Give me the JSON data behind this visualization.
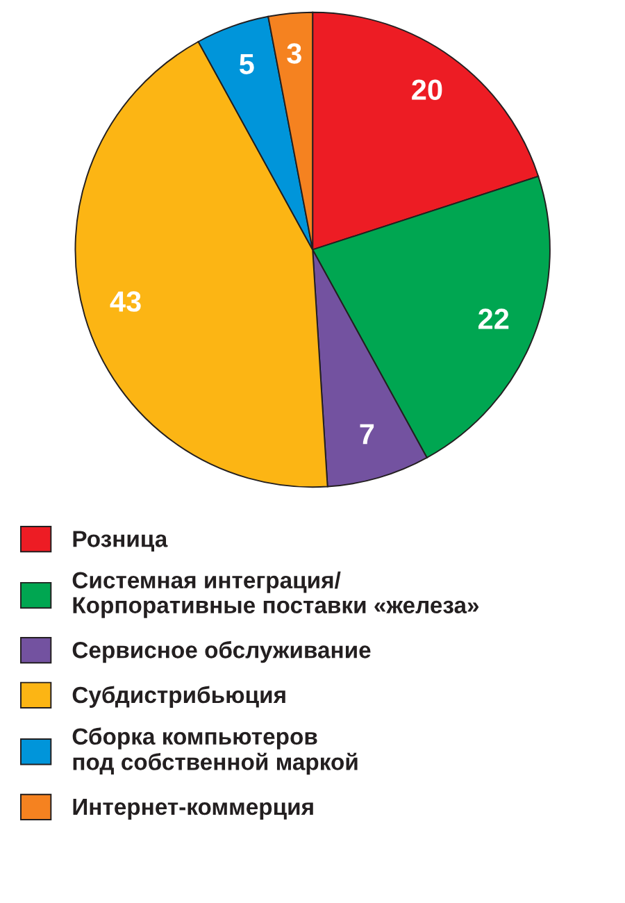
{
  "chart_data": {
    "type": "pie",
    "categories": [
      "Розница",
      "Системная интеграция/\nКорпоративные поставки «железа»",
      "Сервисное обслуживание",
      "Субдистрибьюция",
      "Сборка компьютеров\nпод собственной маркой",
      "Интернет-коммерция"
    ],
    "values": [
      20,
      22,
      7,
      43,
      5,
      3
    ],
    "colors": [
      "#ed1c24",
      "#00a651",
      "#7352a0",
      "#fcb514",
      "#0095da",
      "#f58220"
    ],
    "data_labels": true,
    "legend": "bottom"
  }
}
